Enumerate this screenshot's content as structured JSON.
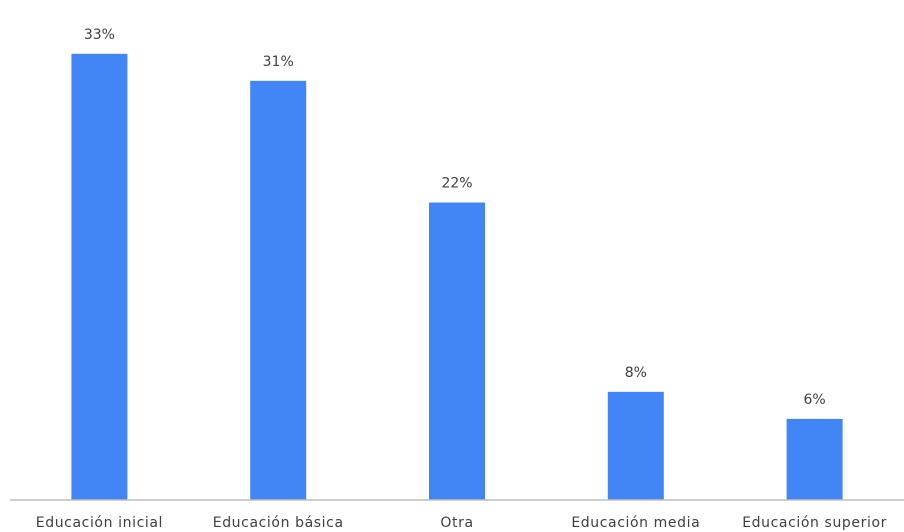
{
  "chart_data": {
    "type": "bar",
    "categories": [
      "Educación inicial",
      "Educación básica",
      "Otra",
      "Educación media",
      "Educación superior"
    ],
    "values": [
      33,
      31,
      22,
      8,
      6
    ],
    "data_labels": [
      "33%",
      "31%",
      "22%",
      "8%",
      "6%"
    ],
    "unit": "%",
    "ylim": [
      0,
      35.5
    ],
    "grid": false,
    "legend": "none",
    "bar_color": "#4285F4",
    "axis_color": "#BFBFBF"
  }
}
